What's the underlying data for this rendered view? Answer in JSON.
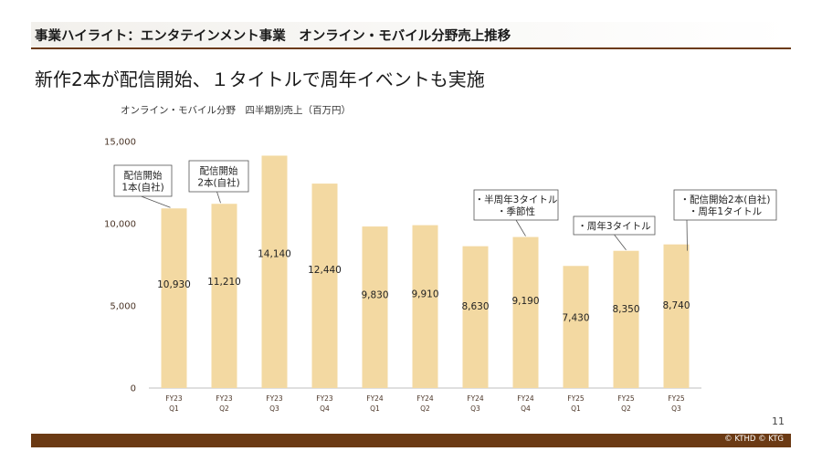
{
  "header": {
    "title": "事業ハイライト：エンタテインメント事業　オンライン・モバイル分野売上推移"
  },
  "headline": "新作2本が配信開始、１タイトルで周年イベントも実施",
  "chart_subtitle": "オンライン・モバイル分野　四半期別売上（百万円）",
  "colors": {
    "bar": "#f3d9a2",
    "band": "#6b3a14",
    "axis": "#bfbfbf",
    "tick": "#4a3426"
  },
  "chart_data": {
    "type": "bar",
    "title": "オンライン・モバイル分野　四半期別売上（百万円）",
    "categories": [
      [
        "FY23",
        "Q1"
      ],
      [
        "FY23",
        "Q2"
      ],
      [
        "FY23",
        "Q3"
      ],
      [
        "FY23",
        "Q4"
      ],
      [
        "FY24",
        "Q1"
      ],
      [
        "FY24",
        "Q2"
      ],
      [
        "FY24",
        "Q3"
      ],
      [
        "FY24",
        "Q4"
      ],
      [
        "FY25",
        "Q1"
      ],
      [
        "FY25",
        "Q2"
      ],
      [
        "FY25",
        "Q3"
      ]
    ],
    "values": [
      10930,
      11210,
      14140,
      12440,
      9830,
      9910,
      8630,
      9190,
      7430,
      8350,
      8740
    ],
    "value_labels": [
      "10,930",
      "11,210",
      "14,140",
      "12,440",
      "9,830",
      "9,910",
      "8,630",
      "9,190",
      "7,430",
      "8,350",
      "8,740"
    ],
    "ylim": [
      0,
      15000
    ],
    "yticks": [
      0,
      5000,
      10000,
      15000
    ],
    "ytick_labels": [
      "0",
      "5,000",
      "10,000",
      "15,000"
    ],
    "xlabel": "",
    "ylabel": "",
    "grid": false,
    "annotations": [
      {
        "bar_index": 0,
        "lines": [
          "配信開始",
          "1本(自社)"
        ]
      },
      {
        "bar_index": 1,
        "lines": [
          "配信開始",
          "2本(自社)"
        ]
      },
      {
        "bar_index": 7,
        "lines": [
          "・半周年3タイトル",
          "・季節性"
        ]
      },
      {
        "bar_index": 9,
        "lines": [
          "・周年3タイトル"
        ]
      },
      {
        "bar_index": 10,
        "lines": [
          "・配信開始2本(自社)",
          "・周年1タイトル"
        ]
      }
    ]
  },
  "footer": {
    "page_number": "11",
    "copyright": "© KTHD © KTG"
  }
}
